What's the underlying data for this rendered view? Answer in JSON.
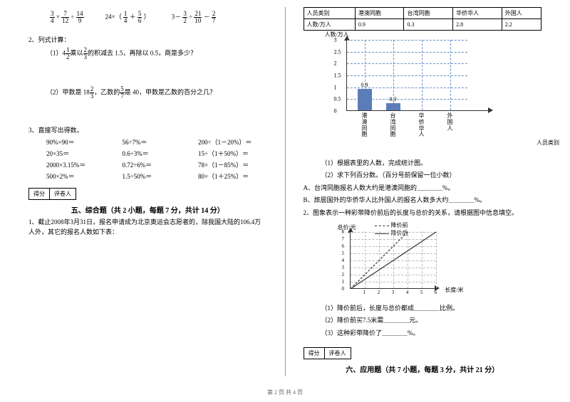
{
  "left": {
    "expr1": {
      "a_num": "3",
      "a_den": "4",
      "b_num": "7",
      "b_den": "12",
      "c_num": "14",
      "c_den": "9"
    },
    "expr2": {
      "coef": "24",
      "a_num": "1",
      "a_den": "4",
      "b_num": "5",
      "b_den": "6"
    },
    "expr3": {
      "a": "3",
      "b_num": "3",
      "b_den": "2",
      "c_num": "21",
      "c_den": "10",
      "d_num": "2",
      "d_den": "7"
    },
    "p2": "2、列式计算：",
    "p2_1_pre": "（1）4",
    "p2_1_frac1_num": "1",
    "p2_1_frac1_den": "2",
    "p2_1_mid": "乘以",
    "p2_1_frac2_num": "2",
    "p2_1_frac2_den": "3",
    "p2_1_post": "的积减去 1.5，再除以 0.5，商是多少？",
    "p2_2_pre": "（2）甲数是 18",
    "p2_2_frac1_num": "2",
    "p2_2_frac1_den": "3",
    "p2_2_mid": "，乙数的",
    "p2_2_frac2_num": "5",
    "p2_2_frac2_den": "7",
    "p2_2_post": "是 40，甲数是乙数的百分之几？",
    "p3": "3、直接写出得数。",
    "calc": [
      [
        "90%×90＝",
        "56÷7%＝",
        "200÷（1－20%）＝"
      ],
      [
        "20×35＝",
        "0.6÷3%＝",
        "15÷（1＋50%）＝"
      ],
      [
        "2000×3.15%＝",
        "0.72÷6%＝",
        "78×（1－85%）＝"
      ],
      [
        "500×2%＝",
        "1.5÷50%＝",
        "80×（1＋25%）＝"
      ]
    ],
    "score_label1": "得分",
    "score_label2": "评卷人",
    "section5": "五、综合题（共 2 小题，每题 7 分，共计 14 分）",
    "q1": "1、截止2008年3月31日，报名申请成为北京奥运会志愿者的，除我国大陆的106.4万人外，其它的报名人数如下表："
  },
  "right": {
    "table": {
      "headers": [
        "人员类别",
        "港澳同胞",
        "台湾同胞",
        "华侨华人",
        "外国人"
      ],
      "row": [
        "人数/万人",
        "0.9",
        "0.3",
        "2.8",
        "2.2"
      ]
    },
    "chart": {
      "y_label": "人数/万人",
      "x_label": "人员类别",
      "y_ticks": [
        "0",
        "0.5",
        "1",
        "1.5",
        "2",
        "2.5",
        "3"
      ],
      "y_max": 3,
      "bars": [
        {
          "label": "港澳同胞",
          "value": 0.9,
          "value_label": "0.9",
          "color": "#5a7db8"
        },
        {
          "label": "台湾同胞",
          "value": 0.3,
          "value_label": "0.3",
          "color": "#5a7db8"
        },
        {
          "label": "华侨华人",
          "value": null,
          "value_label": "",
          "color": "#5a7db8"
        },
        {
          "label": "外国人",
          "value": null,
          "value_label": "",
          "color": "#5a7db8"
        }
      ]
    },
    "q1_sub": [
      "（1）根据表里的人数，完成统计图。",
      "（2）求下列百分数。（百分号前保留一位小数）",
      "A、台湾同胞报名人数大约是港澳同胞的＿＿＿＿%。",
      "B、旅居国外的华侨华人比外国人的报名人数多大约＿＿＿＿%。"
    ],
    "q2": "2、图象表示一种彩带降价前后的长度与总价的关系，请根据图中信息填空。",
    "line_chart": {
      "y_label": "总价/元",
      "x_label": "长度/米",
      "legend_before": "降价前",
      "legend_after": "降价后",
      "y_ticks": [
        "0",
        "1",
        "2",
        "3",
        "4",
        "5",
        "6",
        "7",
        "8"
      ],
      "x_ticks": [
        "1",
        "2",
        "3",
        "4",
        "5",
        "6"
      ],
      "line_before_color": "#333",
      "line_after_color": "#333"
    },
    "q2_sub": [
      "（1）降价前后，长度与总价都成＿＿＿＿比例。",
      "（2）降价前买7.5米需＿＿＿＿元。",
      "（3）这种彩带降价了＿＿＿＿%。"
    ],
    "score_label1": "得分",
    "score_label2": "评卷人",
    "section6": "六、应用题（共 7 小题，每题 3 分，共计 21 分）"
  },
  "footer": "第 2 页  共 4 页"
}
